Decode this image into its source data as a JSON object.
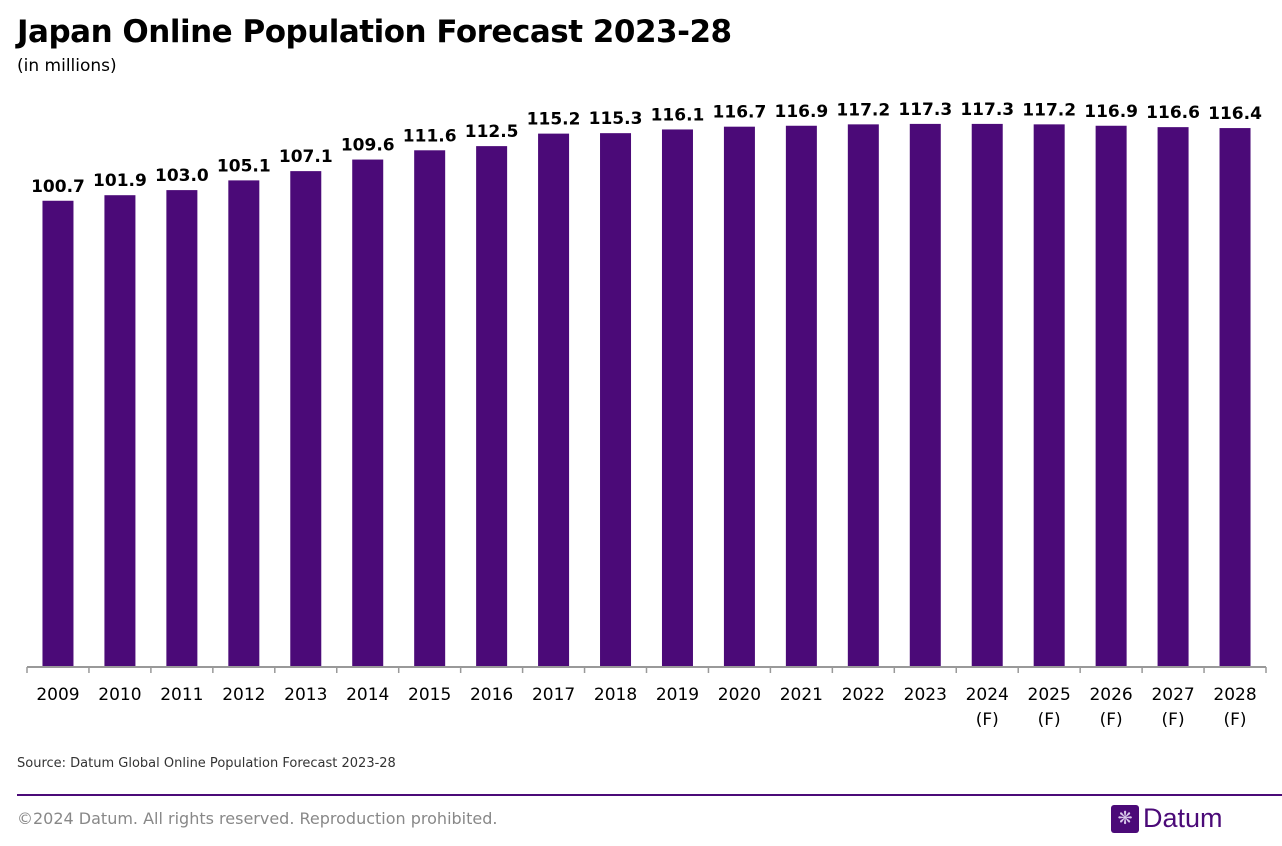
{
  "chart_data": {
    "type": "bar",
    "title": "Japan Online Population Forecast 2023-28",
    "subtitle": "(in millions)",
    "categories": [
      "2009",
      "2010",
      "2011",
      "2012",
      "2013",
      "2014",
      "2015",
      "2016",
      "2017",
      "2018",
      "2019",
      "2020",
      "2021",
      "2022",
      "2023",
      "2024\n(F)",
      "2025\n(F)",
      "2026\n(F)",
      "2027\n(F)",
      "2028\n(F)"
    ],
    "values": [
      100.7,
      101.9,
      103.0,
      105.1,
      107.1,
      109.6,
      111.6,
      112.5,
      115.2,
      115.3,
      116.1,
      116.7,
      116.9,
      117.2,
      117.3,
      117.3,
      117.2,
      116.9,
      116.6,
      116.4
    ],
    "ylim": [
      0,
      120
    ],
    "grid": false,
    "bar_color": "#4b0a78"
  },
  "footer": {
    "source": "Source: Datum Global Online Population Forecast 2023-28",
    "copyright": "©2024 Datum. All rights reserved. Reproduction prohibited.",
    "logo": "Datum"
  }
}
